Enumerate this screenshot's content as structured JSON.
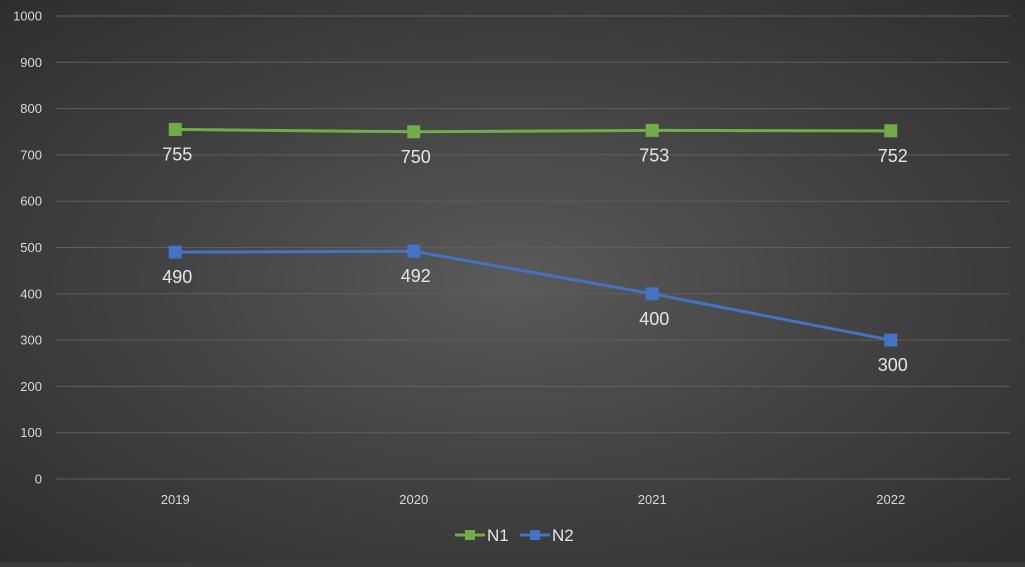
{
  "chart_data": {
    "type": "line",
    "categories": [
      "2019",
      "2020",
      "2021",
      "2022"
    ],
    "series": [
      {
        "name": "N1",
        "values": [
          755,
          750,
          753,
          752
        ],
        "color": "#70ad47",
        "marker": "square"
      },
      {
        "name": "N2",
        "values": [
          490,
          492,
          400,
          300
        ],
        "color": "#4472c4",
        "marker": "square"
      }
    ],
    "title": "",
    "xlabel": "",
    "ylabel": "",
    "ylim": [
      0,
      1000
    ],
    "yticks": [
      "0",
      "100",
      "200",
      "300",
      "400",
      "500",
      "600",
      "700",
      "800",
      "900",
      "1000"
    ],
    "grid": true,
    "legend_position": "bottom",
    "data_labels_position": "below"
  }
}
